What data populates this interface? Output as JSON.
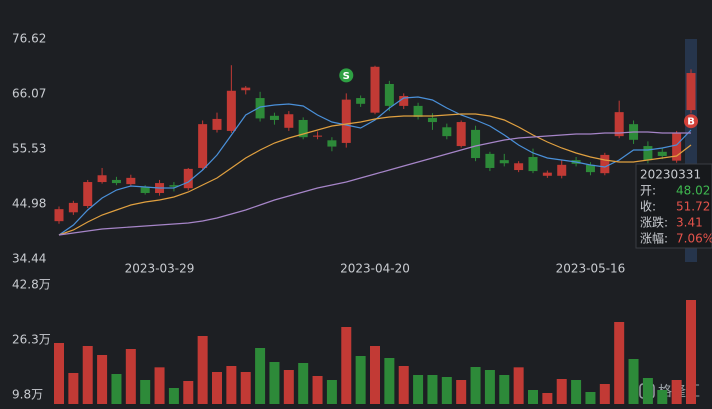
{
  "chart_data": {
    "type": "candlestick",
    "categories": [
      null,
      null,
      null,
      null,
      null,
      null,
      null,
      "2023-03-29",
      null,
      null,
      null,
      null,
      null,
      null,
      null,
      null,
      null,
      null,
      null,
      null,
      null,
      null,
      "2023-04-20",
      null,
      null,
      null,
      null,
      null,
      null,
      null,
      null,
      null,
      null,
      null,
      null,
      null,
      null,
      "2023-05-16",
      null,
      null,
      null,
      null,
      null,
      null,
      null
    ],
    "open": [
      41.7,
      43.4,
      44.6,
      49.2,
      49.6,
      48.8,
      48.2,
      47.1,
      48.6,
      48.02,
      51.9,
      59.2,
      59.0,
      66.8,
      65.3,
      61.9,
      59.6,
      61.1,
      57.9,
      57.2,
      56.7,
      65.3,
      62.5,
      68.0,
      63.8,
      63.8,
      61.5,
      59.7,
      56.1,
      59.2,
      54.6,
      53.4,
      51.5,
      54.0,
      50.4,
      50.4,
      53.4,
      52.5,
      50.9,
      58.0,
      60.3,
      56.1,
      55.0,
      53.3,
      63.0
    ],
    "close": [
      44.0,
      45.2,
      49.2,
      50.5,
      49.0,
      50.0,
      47.1,
      49.0,
      48.31,
      51.72,
      60.3,
      61.3,
      66.7,
      67.3,
      61.4,
      61.1,
      62.2,
      57.8,
      58.1,
      56.0,
      65.0,
      64.2,
      71.3,
      63.8,
      65.7,
      61.7,
      60.7,
      58.0,
      60.7,
      53.8,
      51.9,
      52.8,
      52.8,
      51.3,
      51.0,
      52.5,
      52.7,
      51.1,
      54.4,
      62.6,
      57.3,
      53.4,
      54.2,
      58.6,
      70.1
    ],
    "high": [
      44.5,
      45.6,
      49.6,
      51.9,
      50.2,
      50.6,
      48.6,
      49.6,
      49.2,
      51.9,
      61.0,
      62.5,
      71.6,
      67.6,
      66.5,
      62.5,
      62.8,
      61.6,
      58.9,
      57.8,
      66.2,
      65.8,
      71.5,
      68.6,
      66.2,
      64.4,
      62.4,
      60.4,
      61.0,
      60.0,
      55.0,
      54.6,
      53.2,
      55.6,
      51.4,
      53.4,
      54.0,
      53.0,
      54.8,
      64.8,
      61.0,
      57.0,
      55.8,
      59.0,
      70.8
    ],
    "low": [
      41.2,
      42.9,
      44.2,
      48.9,
      48.6,
      48.4,
      46.8,
      46.6,
      47.4,
      47.6,
      51.5,
      58.7,
      58.6,
      66.0,
      60.8,
      60.2,
      59.0,
      57.4,
      57.4,
      55.1,
      55.8,
      63.6,
      62.2,
      62.8,
      63.2,
      61.2,
      59.2,
      57.4,
      55.8,
      53.2,
      51.3,
      52.2,
      51.1,
      50.9,
      50.0,
      49.9,
      52.2,
      50.5,
      50.5,
      57.6,
      56.5,
      52.8,
      53.6,
      52.9,
      62.4
    ],
    "up_color": "#c23a35",
    "down_color": "#2d8a39",
    "ylim": [
      33.87,
      78.35
    ],
    "yticks": [
      34.44,
      44.98,
      55.53,
      66.07,
      76.62
    ],
    "grid": false,
    "moving_averages": [
      {
        "color": "#4a90d9",
        "values": [
          39.05,
          40.97,
          43.84,
          46.14,
          47.68,
          48.44,
          48.25,
          48.06,
          48.06,
          49.21,
          51.51,
          54.39,
          58.22,
          62.05,
          63.59,
          63.97,
          64.16,
          63.78,
          62.05,
          60.71,
          60.14,
          59.56,
          61.1,
          63.4,
          65.31,
          65.5,
          64.93,
          63.4,
          62.05,
          61.1,
          59.95,
          58.22,
          56.3,
          54.77,
          53.81,
          53.43,
          53.04,
          52.47,
          52.08,
          53.43,
          55.35,
          55.35,
          55.73,
          56.3,
          59.18
        ]
      },
      {
        "color": "#e0a040",
        "values": [
          39.05,
          40.01,
          41.54,
          42.88,
          43.84,
          44.8,
          45.38,
          45.76,
          46.34,
          47.29,
          48.64,
          49.98,
          51.89,
          53.81,
          55.35,
          56.69,
          57.65,
          58.41,
          59.18,
          59.95,
          60.33,
          60.71,
          61.29,
          61.67,
          61.86,
          61.86,
          61.86,
          62.05,
          62.25,
          62.25,
          61.86,
          61.1,
          59.75,
          58.22,
          56.88,
          55.73,
          54.77,
          54.0,
          53.43,
          53.04,
          53.04,
          53.43,
          53.81,
          54.19,
          56.3
        ]
      },
      {
        "color": "#a685c8",
        "values": [
          39.05,
          39.43,
          39.82,
          40.2,
          40.39,
          40.58,
          40.78,
          40.97,
          41.16,
          41.35,
          41.73,
          42.31,
          43.08,
          43.84,
          44.8,
          45.76,
          46.53,
          47.29,
          48.06,
          48.64,
          49.21,
          49.98,
          50.74,
          51.51,
          52.28,
          53.04,
          53.81,
          54.58,
          55.35,
          56.11,
          56.69,
          57.26,
          57.65,
          57.84,
          58.03,
          58.22,
          58.41,
          58.41,
          58.6,
          58.6,
          58.8,
          58.8,
          58.6,
          58.6,
          58.6
        ]
      }
    ],
    "markers": [
      {
        "label": "S",
        "category_index": 20,
        "color": "#2ea043",
        "side": "above"
      },
      {
        "label": "B",
        "category_index": 44,
        "color": "#d2413a",
        "side": "below"
      }
    ],
    "volume": {
      "values": [
        25.4,
        16.4,
        24.5,
        21.8,
        16.1,
        23.6,
        14.3,
        18.1,
        11.9,
        14.0,
        27.5,
        16.7,
        18.5,
        16.7,
        23.9,
        19.7,
        17.3,
        19.4,
        15.5,
        14.3,
        30.2,
        21.5,
        24.5,
        20.9,
        18.5,
        15.8,
        15.8,
        15.2,
        14.3,
        18.2,
        17.3,
        15.8,
        18.1,
        11.3,
        10.4,
        14.6,
        14.3,
        10.7,
        13.1,
        31.7,
        20.6,
        14.9,
        11.3,
        14.3,
        38.3
      ],
      "ylim": [
        7.1,
        44.9
      ],
      "yticks": [
        {
          "value": 9.8,
          "label": "9.8万"
        },
        {
          "value": 26.3,
          "label": "26.3万"
        },
        {
          "value": 42.8,
          "label": "42.8万"
        }
      ]
    },
    "tooltip": {
      "date": "20230331",
      "rows": [
        {
          "label": "开:",
          "value": 48.02,
          "color": "#3fb950"
        },
        {
          "label": "收:",
          "value": 51.72,
          "color": "#e5534b"
        },
        {
          "label": "涨跌:",
          "value": 3.41,
          "color": "#e5534b"
        },
        {
          "label": "涨幅:",
          "value": 7.06,
          "value_label": "7.06%",
          "color": "#e5534b"
        }
      ]
    }
  },
  "watermark": "格隆汇"
}
